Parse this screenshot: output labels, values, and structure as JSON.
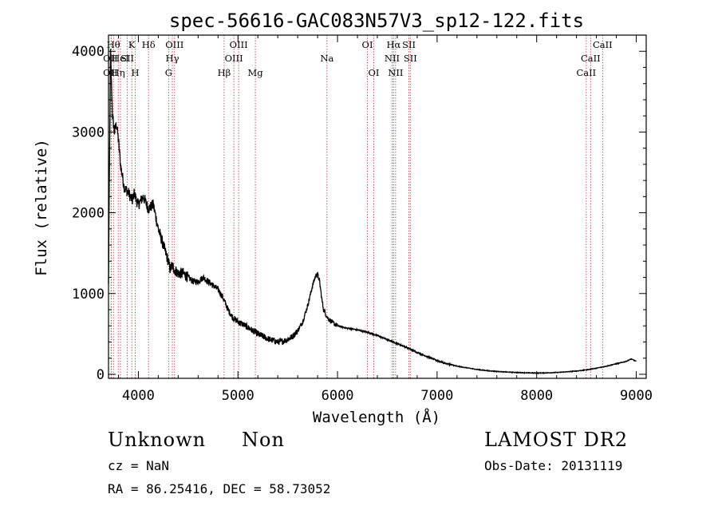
{
  "chart_data": {
    "type": "line",
    "title": "spec-56616-GAC083N57V3_sp12-122.fits",
    "xlabel": "Wavelength (Å)",
    "ylabel": "Flux (relative)",
    "xlim": [
      3700,
      9100
    ],
    "ylim": [
      -50,
      4200
    ],
    "xticks": [
      4000,
      5000,
      6000,
      7000,
      8000,
      9000
    ],
    "xtick_labels": [
      "4000",
      "5000",
      "6000",
      "7000",
      "8000",
      "9000"
    ],
    "yticks": [
      0,
      1000,
      2000,
      3000,
      4000
    ],
    "ytick_labels": [
      "0",
      "1000",
      "2000",
      "3000",
      "4000"
    ],
    "grid": false,
    "series": [
      {
        "x": [
          3700,
          3720,
          3730,
          3740,
          3760,
          3780,
          3800,
          3820,
          3840,
          3860,
          3880,
          3900,
          3920,
          3940,
          3960,
          3980,
          4000,
          4050,
          4100,
          4150,
          4200,
          4250,
          4300,
          4320,
          4340,
          4360,
          4400,
          4450,
          4500,
          4550,
          4600,
          4650,
          4700,
          4750,
          4800,
          4850,
          4900,
          4950,
          5000,
          5050,
          5100,
          5150,
          5200,
          5250,
          5300,
          5350,
          5400,
          5450,
          5500,
          5550,
          5600,
          5650,
          5700,
          5750,
          5780,
          5800,
          5820,
          5840,
          5860,
          5900,
          5950,
          6000,
          6100,
          6200,
          6300,
          6400,
          6500,
          6600,
          6700,
          6800,
          6900,
          7000,
          7100,
          7200,
          7300,
          7400,
          7500,
          7600,
          7700,
          7800,
          7900,
          8000,
          8100,
          8200,
          8300,
          8400,
          8500,
          8600,
          8700,
          8800,
          8900,
          8950,
          9000
        ],
        "y": [
          1100,
          4000,
          3600,
          3200,
          3000,
          3100,
          2900,
          2600,
          2450,
          2300,
          2280,
          2250,
          2200,
          2150,
          2250,
          2150,
          2100,
          2200,
          2050,
          2100,
          1800,
          1600,
          1400,
          1300,
          1350,
          1300,
          1250,
          1250,
          1200,
          1150,
          1150,
          1200,
          1150,
          1100,
          1050,
          950,
          800,
          700,
          650,
          620,
          580,
          540,
          500,
          470,
          440,
          420,
          400,
          410,
          430,
          470,
          540,
          650,
          850,
          1100,
          1220,
          1240,
          1150,
          950,
          800,
          700,
          640,
          600,
          570,
          550,
          520,
          480,
          430,
          380,
          330,
          270,
          220,
          170,
          130,
          100,
          80,
          60,
          45,
          35,
          28,
          22,
          18,
          15,
          18,
          22,
          30,
          40,
          55,
          75,
          100,
          130,
          160,
          190,
          160
        ]
      }
    ],
    "line_markers": [
      {
        "wl": 3727,
        "label": "OII",
        "row": 2,
        "dx": -1
      },
      {
        "wl": 3727,
        "label": "OII",
        "row": 3,
        "dx": -1
      },
      {
        "wl": 3750,
        "label": "Hθ",
        "row": 1,
        "dx": 0
      },
      {
        "wl": 3798,
        "label": "Hη",
        "row": 3,
        "dx": 0
      },
      {
        "wl": 3820,
        "label": "HeI",
        "row": 2,
        "dx": 0
      },
      {
        "wl": 3889,
        "label": "SII",
        "row": 2,
        "dx": 0
      },
      {
        "wl": 3934,
        "label": "K",
        "row": 1,
        "dx": 0
      },
      {
        "wl": 3969,
        "label": "H",
        "row": 3,
        "dx": 0
      },
      {
        "wl": 4102,
        "label": "Hδ",
        "row": 1,
        "dx": 0
      },
      {
        "wl": 4304,
        "label": "G",
        "row": 3,
        "dx": 0
      },
      {
        "wl": 4341,
        "label": "Hγ",
        "row": 2,
        "dx": 0
      },
      {
        "wl": 4363,
        "label": "OIII",
        "row": 1,
        "dx": 0
      },
      {
        "wl": 4861,
        "label": "Hβ",
        "row": 3,
        "dx": 0
      },
      {
        "wl": 4959,
        "label": "OIII",
        "row": 2,
        "dx": 0
      },
      {
        "wl": 5007,
        "label": "OIII",
        "row": 1,
        "dx": 0
      },
      {
        "wl": 5175,
        "label": "Mg",
        "row": 3,
        "dx": 0
      },
      {
        "wl": 5894,
        "label": "Na",
        "row": 2,
        "dx": 0
      },
      {
        "wl": 6300,
        "label": "OI",
        "row": 1,
        "dx": 0
      },
      {
        "wl": 6364,
        "label": "OI",
        "row": 3,
        "dx": 0
      },
      {
        "wl": 6548,
        "label": "NII",
        "row": 2,
        "dx": 0
      },
      {
        "wl": 6563,
        "label": "Hα",
        "row": 1,
        "dx": 0
      },
      {
        "wl": 6583,
        "label": "NII",
        "row": 3,
        "dx": 0
      },
      {
        "wl": 6717,
        "label": "SII",
        "row": 1,
        "dx": 0
      },
      {
        "wl": 6731,
        "label": "SII",
        "row": 2,
        "dx": 0
      },
      {
        "wl": 8498,
        "label": "CaII",
        "row": 3,
        "dx": 0
      },
      {
        "wl": 8542,
        "label": "CaII",
        "row": 2,
        "dx": 0
      },
      {
        "wl": 8662,
        "label": "CaII",
        "row": 1,
        "dx": 0
      }
    ]
  },
  "info": {
    "class": "Unknown",
    "subclass": "Non",
    "survey": "LAMOST DR2",
    "cz": "cz = NaN",
    "obs_date": "Obs-Date: 20131119",
    "coords": "RA =  86.25416, DEC =  58.73052"
  }
}
